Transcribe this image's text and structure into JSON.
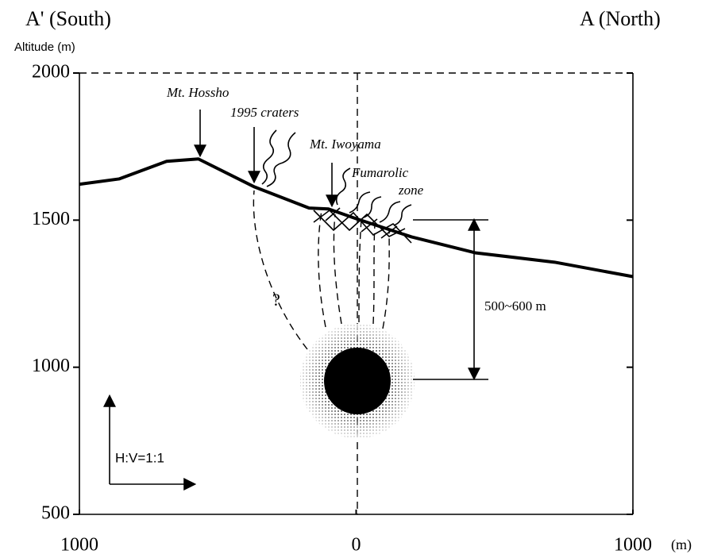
{
  "chart_data": {
    "type": "line",
    "left_label": "A' (South)",
    "right_label": "A (North)",
    "y_label": "Altitude (m)",
    "x_unit": "(m)",
    "x": [
      -1000,
      -857,
      -685,
      -570,
      -370,
      -170,
      -100,
      0,
      200,
      430,
      717,
      1000
    ],
    "values": [
      1622,
      1640,
      1700,
      1708,
      1614,
      1541,
      1538,
      1505,
      1443,
      1389,
      1357,
      1308
    ],
    "color": "#000000",
    "xlim": [
      -1000,
      1000
    ],
    "xticks": [
      {
        "value": -1000,
        "label": "1000"
      },
      0,
      1000
    ],
    "ylim": [
      500,
      2000
    ],
    "yticks": [
      500,
      1000,
      1500,
      2000
    ],
    "annotations": {
      "mt_hossho": "Mt. Hossho",
      "craters": "1995 craters",
      "mt_iwoyama": "Mt. Iwoyama",
      "fumarolic": "Fumarolic",
      "zone": "zone",
      "question": "?",
      "depth": "500~600 m",
      "scale": "H:V=1:1"
    }
  }
}
